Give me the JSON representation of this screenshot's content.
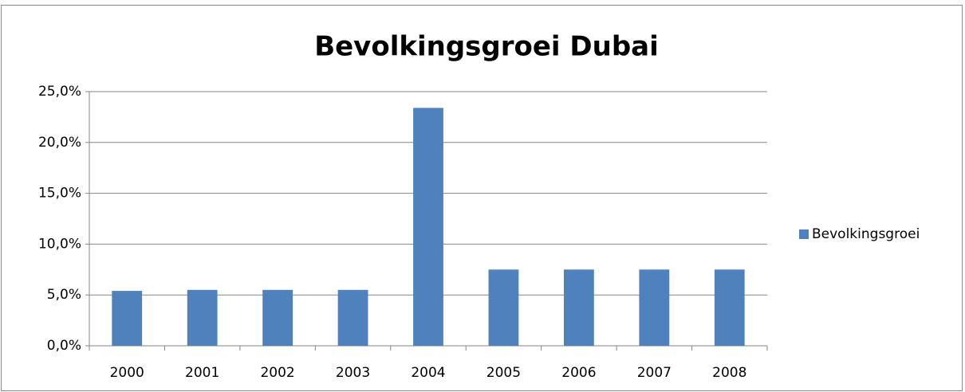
{
  "chart_data": {
    "type": "bar",
    "title": "Bevolkingsgroei Dubai",
    "categories": [
      "2000",
      "2001",
      "2002",
      "2003",
      "2004",
      "2005",
      "2006",
      "2007",
      "2008"
    ],
    "series": [
      {
        "name": "Bevolkingsgroei",
        "color": "#4f81bd",
        "values": [
          5.4,
          5.5,
          5.5,
          5.5,
          23.4,
          7.5,
          7.5,
          7.5,
          7.5
        ]
      }
    ],
    "ylim": [
      0,
      25
    ],
    "yticks": [
      {
        "value": 0,
        "label": "0,0%"
      },
      {
        "value": 5,
        "label": "5,0%"
      },
      {
        "value": 10,
        "label": "10,0%"
      },
      {
        "value": 15,
        "label": "15,0%"
      },
      {
        "value": 20,
        "label": "20,0%"
      },
      {
        "value": 25,
        "label": "25,0%"
      }
    ],
    "grid": true,
    "legend": "right"
  }
}
